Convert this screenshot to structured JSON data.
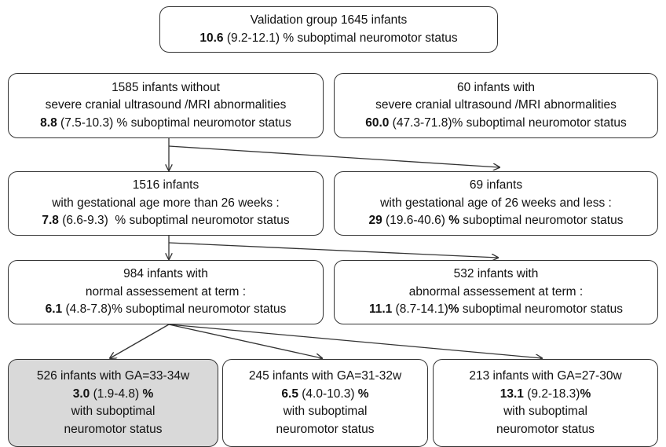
{
  "nodes": [
    {
      "lines": [
        "Validation group 1645 infants",
        [
          {
            "text": "10.6",
            "bold": true
          },
          {
            "text": " (9.2-12.1) % suboptimal neuromotor status",
            "bold": false
          }
        ]
      ]
    },
    {
      "lines": [
        "1585 infants without",
        "severe cranial ultrasound /MRI abnormalities",
        [
          {
            "text": "8.8",
            "bold": true
          },
          {
            "text": " (7.5-10.3) % suboptimal neuromotor status",
            "bold": false
          }
        ]
      ]
    },
    {
      "lines": [
        "60 infants with",
        "severe cranial ultrasound /MRI abnormalities",
        [
          {
            "text": "60.0",
            "bold": true
          },
          {
            "text": " (47.3-71.8)% suboptimal neuromotor status",
            "bold": false
          }
        ]
      ]
    },
    {
      "lines": [
        "1516 infants",
        "with  gestational age more than 26 weeks :",
        [
          {
            "text": "7.8",
            "bold": true
          },
          {
            "text": " (6.6-9.3)  % suboptimal neuromotor status",
            "bold": false
          }
        ]
      ]
    },
    {
      "lines": [
        "69 infants",
        "with  gestational age  of 26 weeks and less :",
        [
          {
            "text": "29",
            "bold": true
          },
          {
            "text": " (19.6-40.6) ",
            "bold": false
          },
          {
            "text": "%",
            "bold": true
          },
          {
            "text": " suboptimal neuromotor status",
            "bold": false
          }
        ]
      ]
    },
    {
      "lines": [
        "984 infants with",
        "normal assessement at term :",
        [
          {
            "text": "6.1",
            "bold": true
          },
          {
            "text": " (4.8-7.8)% suboptimal neuromotor status",
            "bold": false
          }
        ]
      ]
    },
    {
      "lines": [
        "532 infants with",
        "abnormal assessement at term :",
        [
          {
            "text": "11.1",
            "bold": true
          },
          {
            "text": " (8.7-14.1)",
            "bold": false
          },
          {
            "text": "%",
            "bold": true
          },
          {
            "text": " suboptimal neuromotor status",
            "bold": false
          }
        ]
      ]
    },
    {
      "shaded": true,
      "lines": [
        "526 infants with GA=33-34w",
        [
          {
            "text": "3.0",
            "bold": true
          },
          {
            "text": " (1.9-4.8) ",
            "bold": false
          },
          {
            "text": "%",
            "bold": true
          }
        ],
        "with suboptimal",
        "neuromotor status"
      ]
    },
    {
      "lines": [
        "245 infants with GA=31-32w",
        [
          {
            "text": "6.5",
            "bold": true
          },
          {
            "text": " (4.0-10.3) ",
            "bold": false
          },
          {
            "text": "%",
            "bold": true
          }
        ],
        "with suboptimal",
        "neuromotor status"
      ]
    },
    {
      "lines": [
        "213 infants with GA=27-30w",
        [
          {
            "text": "13.1",
            "bold": true
          },
          {
            "text": " (9.2-18.3)",
            "bold": false
          },
          {
            "text": "%",
            "bold": true
          }
        ],
        "with suboptimal",
        "neuromotor status"
      ]
    }
  ]
}
